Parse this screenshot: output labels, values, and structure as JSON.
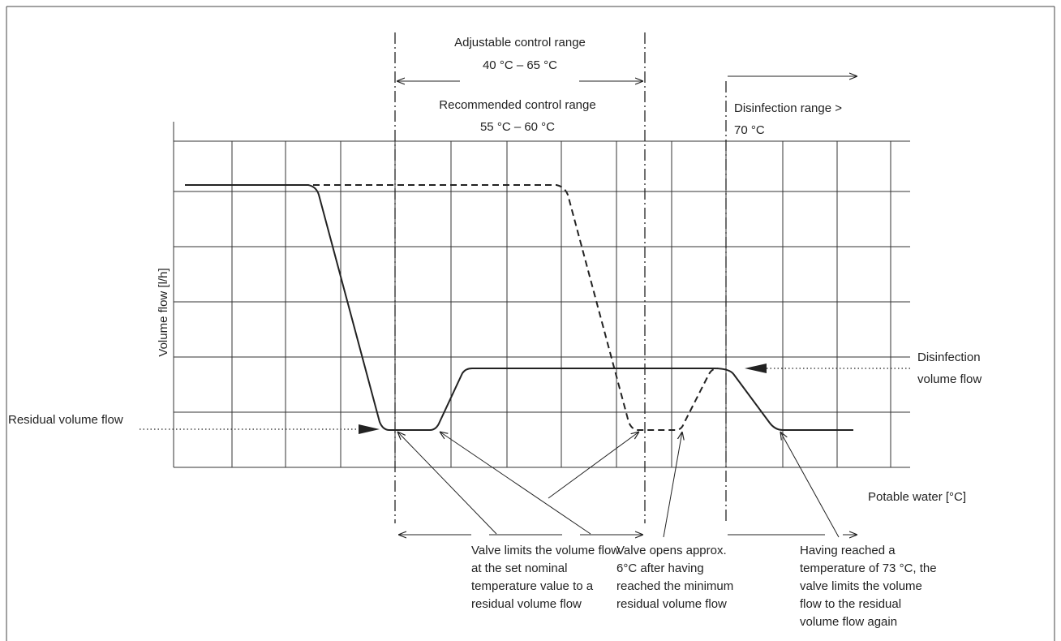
{
  "ranges": {
    "adjustable": {
      "line1": "Adjustable control range",
      "line2": "40 °C – 65 °C"
    },
    "recommended": {
      "line1": "Recommended control range",
      "line2": "55 °C – 60 °C"
    },
    "disinfection": {
      "line1": "Disinfection range >",
      "line2": "70 °C"
    }
  },
  "axes": {
    "ylabel": "Volume flow [l/h]",
    "xlabel": "Potable water [°C]"
  },
  "flow_labels": {
    "residual": "Residual volume flow",
    "disinfection": {
      "line1": "Disinfection",
      "line2": "volume flow"
    }
  },
  "annotations": {
    "valve_limits": [
      "Valve limits the volume flow",
      "at the set nominal",
      "temperature value to a",
      "residual volume flow"
    ],
    "valve_opens": [
      "Valve opens approx.",
      "6°C after having",
      "reached the minimum",
      "residual volume flow"
    ],
    "having_reached": [
      "Having reached a",
      "temperature of 73 °C, the",
      "valve limits the volume",
      "flow to the residual",
      "volume flow again"
    ]
  },
  "colors": {
    "line": "#222222",
    "grid": "#333333",
    "frame": "#444444"
  }
}
